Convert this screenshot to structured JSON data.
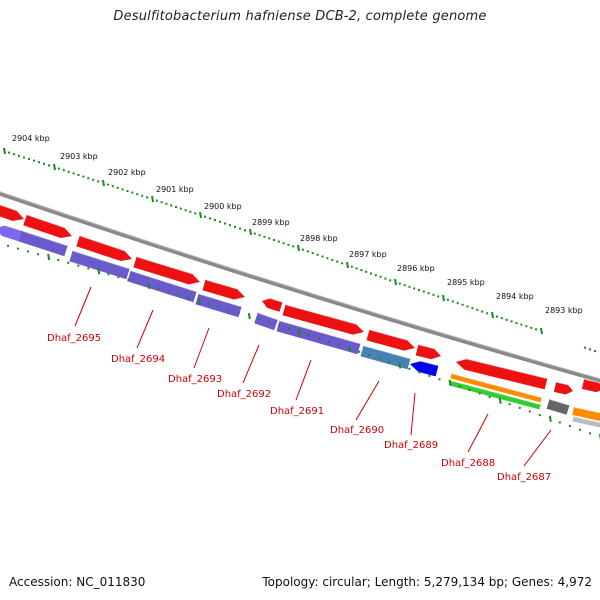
{
  "title": "Desulfitobacterium hafniense DCB-2, complete genome",
  "accession": "Accession: NC_011830",
  "topology": "Topology: circular; Length: 5,279,134 bp; Genes: 4,972",
  "colors": {
    "forward_gene": "#ee1111",
    "reverse_gene": "#6a5acd",
    "backbone": "#8a8a8a",
    "tick": "#1a8a1a",
    "label": "#cc0000",
    "gene_blue": "#0000ee",
    "gene_steel": "#4682b4",
    "track_orange": "#ff8c00",
    "track_green": "#33cc33",
    "track_gray": "#666666"
  },
  "ruler_labels": [
    "2904 kbp",
    "2903 kbp",
    "2902 kbp",
    "2901 kbp",
    "2900 kbp",
    "2899 kbp",
    "2898 kbp",
    "2897 kbp",
    "2896 kbp",
    "2895 kbp",
    "2894 kbp",
    "2893 kbp"
  ],
  "gene_labels": [
    "Dhaf_2695",
    "Dhaf_2694",
    "Dhaf_2693",
    "Dhaf_2692",
    "Dhaf_2691",
    "Dhaf_2690",
    "Dhaf_2689",
    "Dhaf_2688",
    "Dhaf_2687"
  ]
}
